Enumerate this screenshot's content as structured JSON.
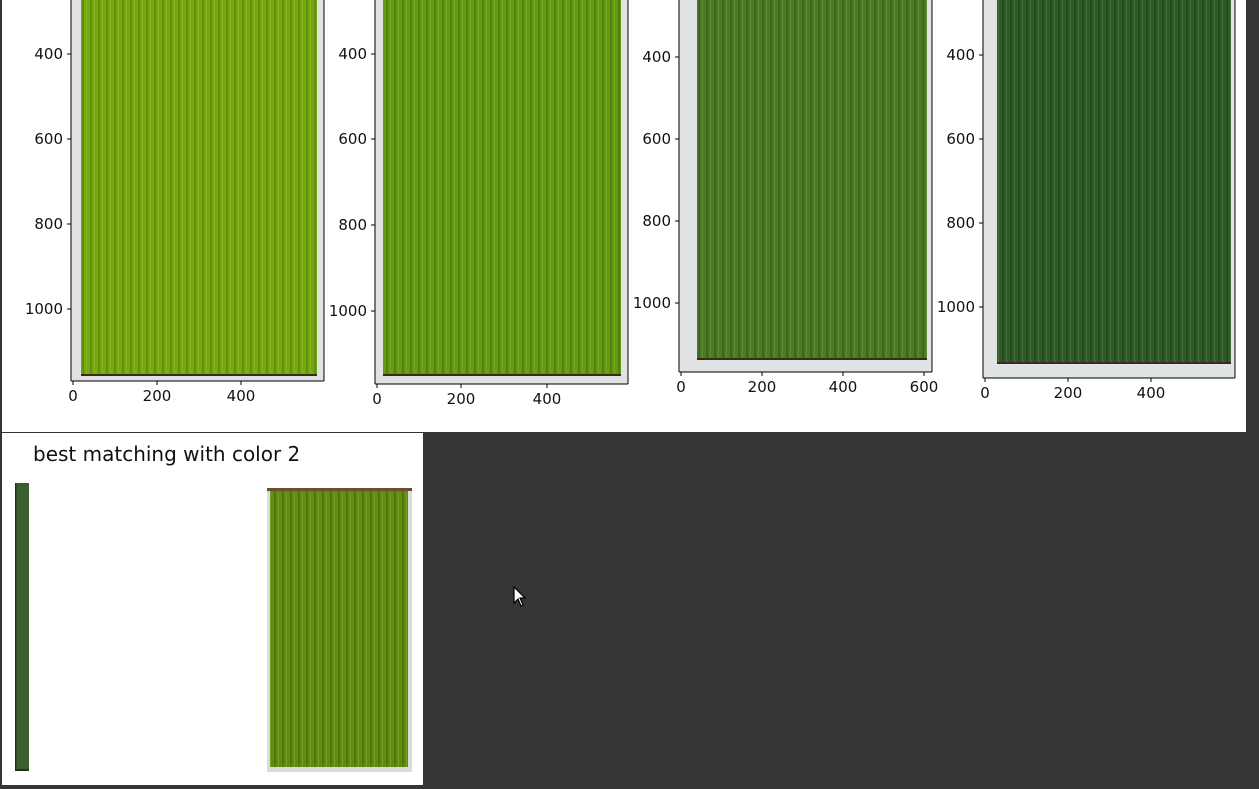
{
  "window": {
    "background_color": "#353535",
    "panel_color": "#ffffff"
  },
  "result": {
    "title": "best matching with color 2",
    "swatch_color": "#3c5f2e",
    "match_image_color": "#5f8e10"
  },
  "plots": [
    {
      "image_color": "#76a80f",
      "y_ticks": [
        "400",
        "600",
        "800",
        "1000"
      ],
      "x_ticks": [
        "0",
        "200",
        "400"
      ]
    },
    {
      "image_color": "#639a12",
      "y_ticks": [
        "400",
        "600",
        "800",
        "1000"
      ],
      "x_ticks": [
        "0",
        "200",
        "400"
      ]
    },
    {
      "image_color": "#497b22",
      "y_ticks": [
        "400",
        "600",
        "800",
        "1000"
      ],
      "x_ticks": [
        "0",
        "200",
        "400",
        "600"
      ]
    },
    {
      "image_color": "#2c5a28",
      "y_ticks": [
        "400",
        "600",
        "800",
        "1000"
      ],
      "x_ticks": [
        "0",
        "200",
        "400"
      ]
    }
  ]
}
